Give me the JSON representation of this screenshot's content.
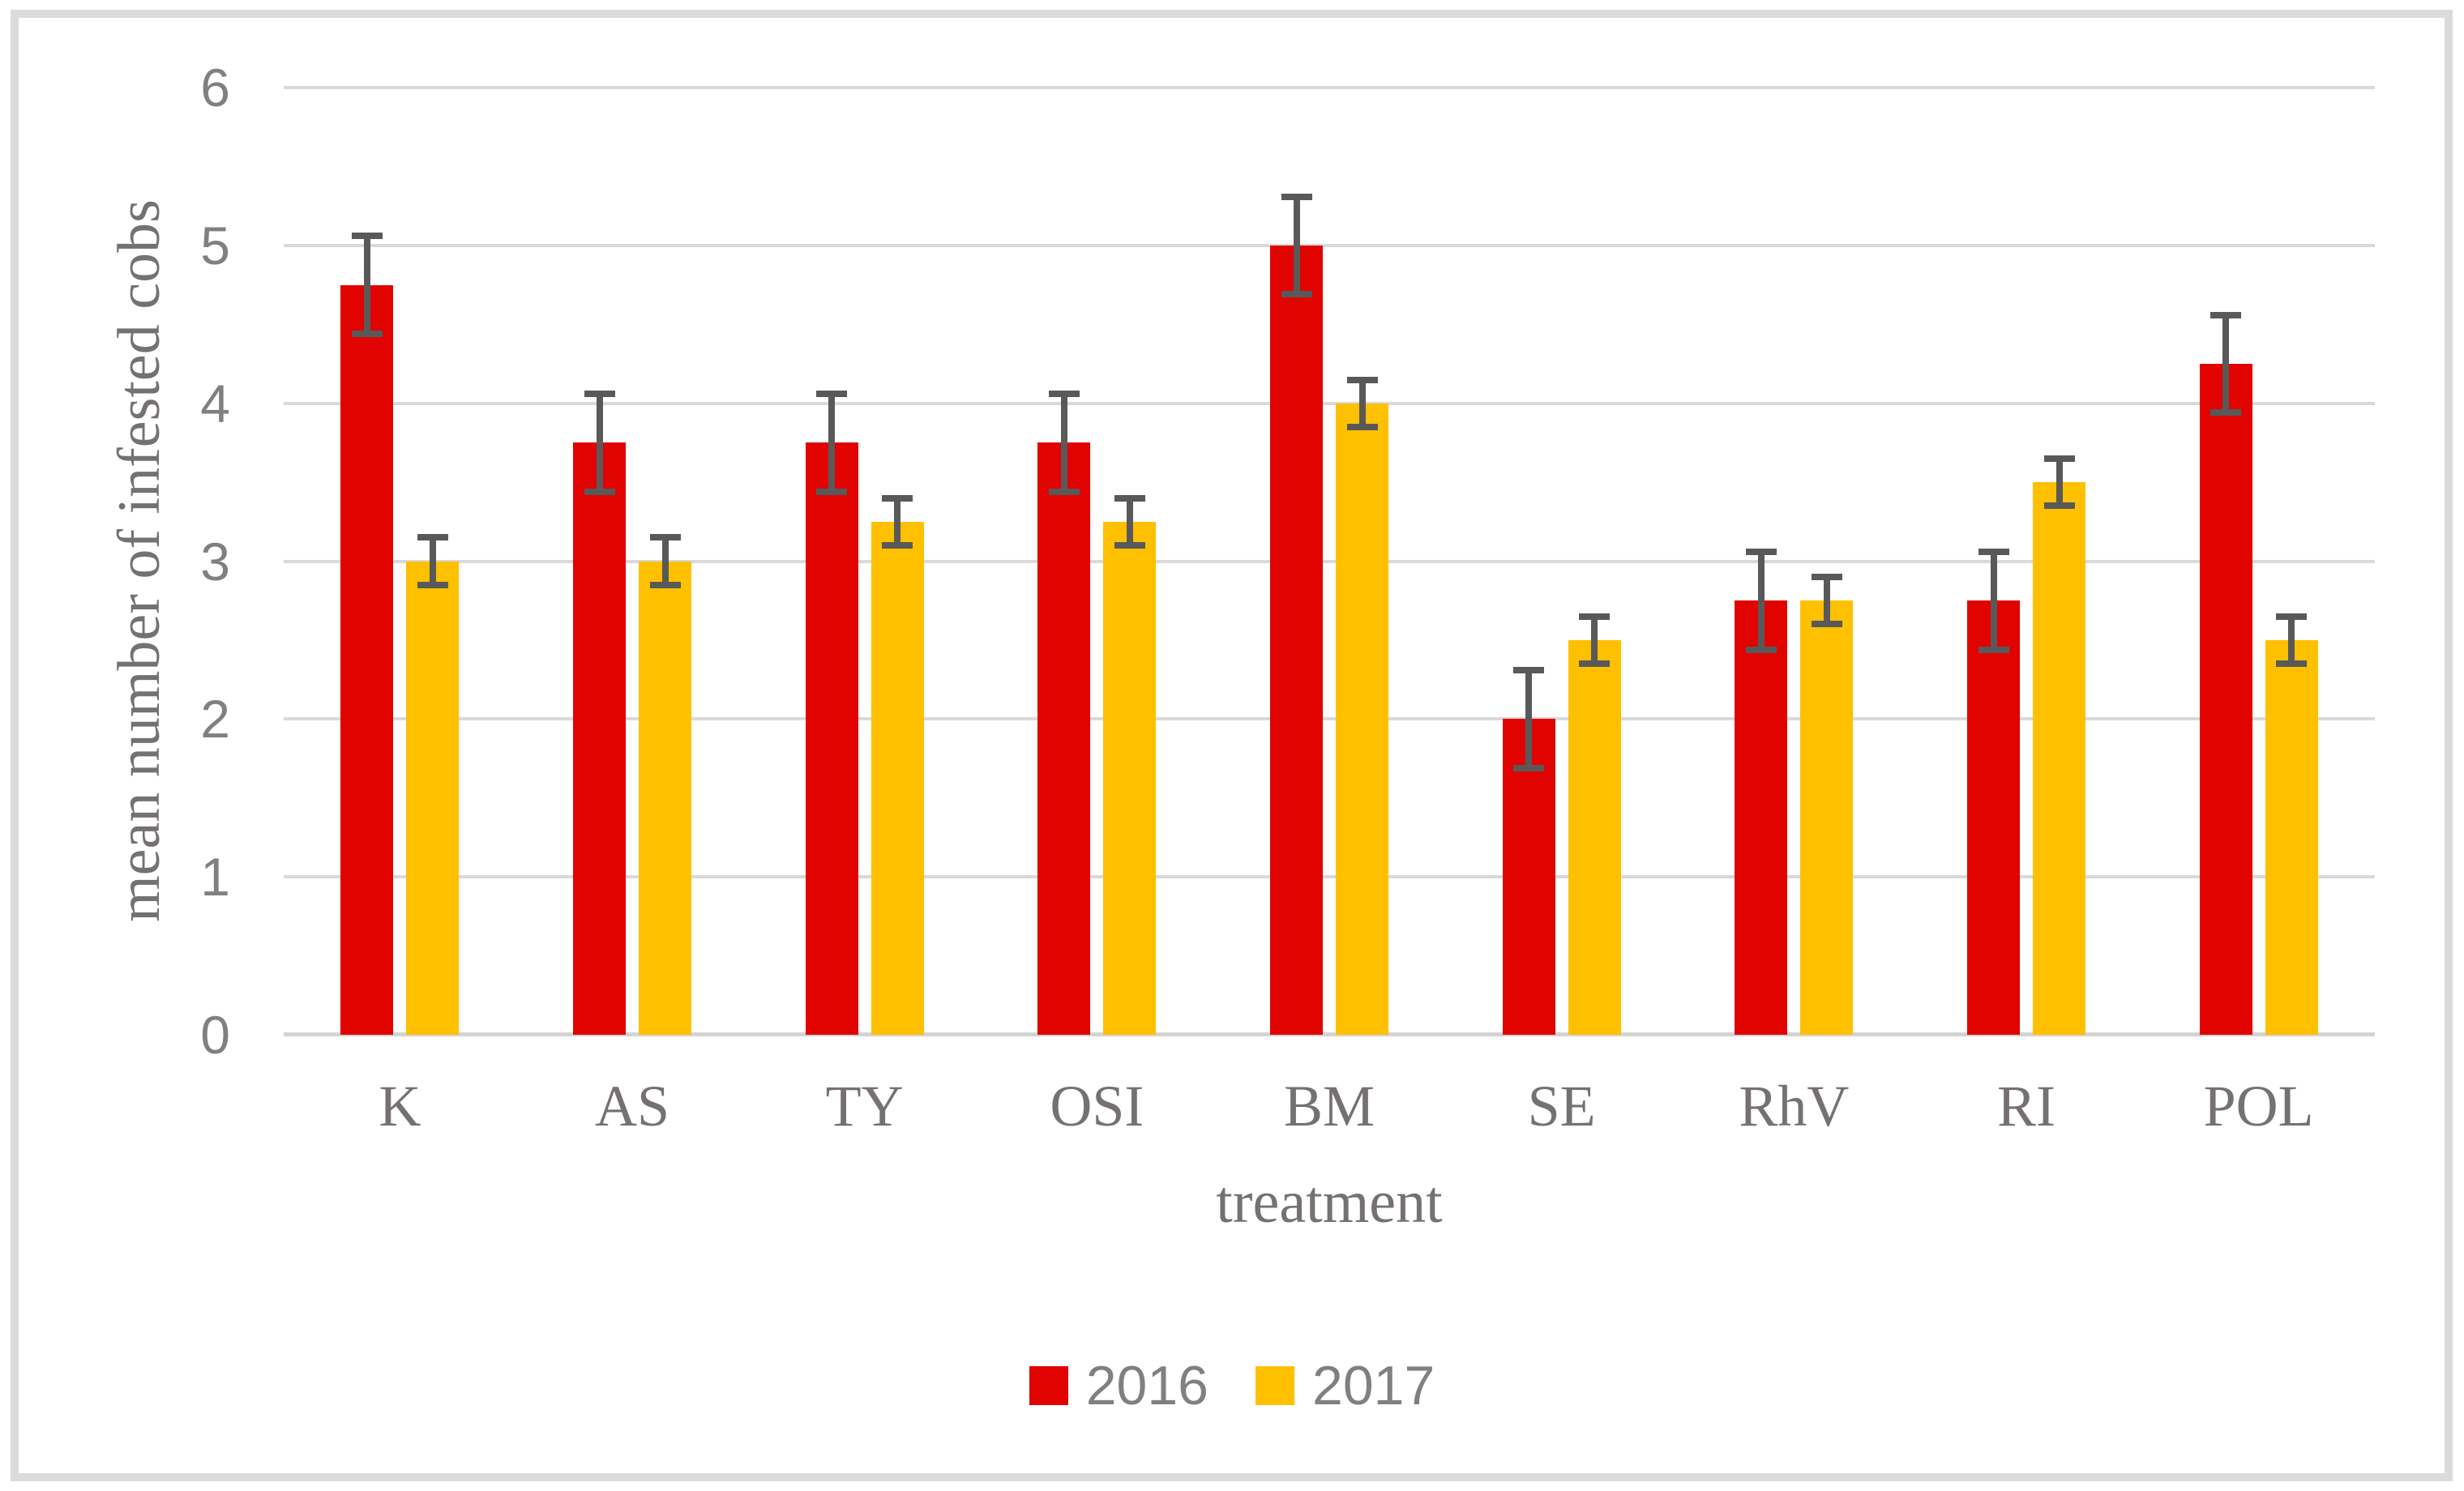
{
  "chart_data": {
    "type": "bar",
    "title": "",
    "categories": [
      "K",
      "AS",
      "TY",
      "OSI",
      "BM",
      "SE",
      "RhV",
      "RI",
      "POL"
    ],
    "series": [
      {
        "name": "2016",
        "color": "#e00300",
        "values": [
          4.75,
          3.75,
          3.75,
          3.75,
          5.0,
          2.0,
          2.75,
          2.75,
          4.25
        ],
        "errors": [
          0.33,
          0.33,
          0.33,
          0.33,
          0.33,
          0.33,
          0.33,
          0.33,
          0.33
        ]
      },
      {
        "name": "2017",
        "color": "#ffc000",
        "values": [
          3.0,
          3.0,
          3.25,
          3.25,
          4.0,
          2.5,
          2.75,
          3.5,
          2.5
        ],
        "errors": [
          0.17,
          0.17,
          0.17,
          0.17,
          0.17,
          0.17,
          0.17,
          0.17,
          0.17
        ]
      }
    ],
    "xlabel": "treatment",
    "ylabel": "mean number of infested cobs",
    "ylim": [
      0,
      6
    ],
    "yticks": [
      0,
      1,
      2,
      3,
      4,
      5,
      6
    ],
    "ytick_labels": [
      "0",
      "1",
      "2",
      "3",
      "4",
      "5",
      "6"
    ],
    "grid": true,
    "legend_position": "bottom",
    "legend_entries": [
      "2016",
      "2017"
    ]
  },
  "styles": {
    "gridline_color": "#d9d9d9",
    "baseline_color": "#d4d4d4",
    "error_bar_color": "#595959",
    "tick_text_color": "#808080",
    "label_text_color": "#767171",
    "frame_border_color": "#dbdbdb",
    "background_color": "#ffffff"
  }
}
